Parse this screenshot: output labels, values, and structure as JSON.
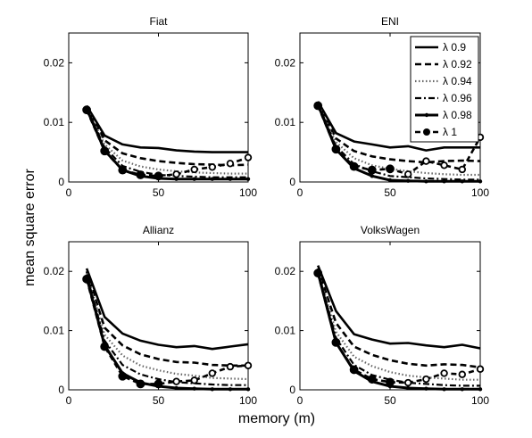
{
  "figure": {
    "xlabel": "memory (m)",
    "ylabel": "mean square error"
  },
  "legend": {
    "placement": "top-right of ENI panel",
    "entries": [
      "λ 0.9",
      "λ 0.92",
      "λ 0.94",
      "λ 0.96",
      "λ 0.98",
      "λ 1"
    ]
  },
  "chart_data": [
    {
      "type": "line",
      "title": "Fiat",
      "x": [
        10,
        20,
        30,
        40,
        50,
        60,
        70,
        80,
        90,
        100
      ],
      "xlim": [
        0,
        100
      ],
      "ylim": [
        0,
        0.025
      ],
      "xticks": [
        "0",
        "50",
        "100"
      ],
      "yticks": [
        "0",
        "0.01",
        "0.02"
      ],
      "series": [
        {
          "name": "λ 0.9",
          "style": "solid",
          "values": [
            0.0128,
            0.0078,
            0.0063,
            0.0058,
            0.0057,
            0.0053,
            0.0051,
            0.005,
            0.005,
            0.005
          ]
        },
        {
          "name": "λ 0.92",
          "style": "dashed",
          "values": [
            0.0127,
            0.007,
            0.0048,
            0.004,
            0.0035,
            0.0032,
            0.003,
            0.0029,
            0.0028,
            0.0029
          ]
        },
        {
          "name": "λ 0.94",
          "style": "dotted",
          "values": [
            0.0125,
            0.0063,
            0.0036,
            0.0026,
            0.0021,
            0.0018,
            0.0016,
            0.0015,
            0.0014,
            0.0014
          ]
        },
        {
          "name": "λ 0.96",
          "style": "dashdot",
          "values": [
            0.0124,
            0.0058,
            0.0027,
            0.0017,
            0.0012,
            0.001,
            0.0009,
            0.0008,
            0.0008,
            0.0008
          ]
        },
        {
          "name": "λ 0.98",
          "style": "solid-dot",
          "values": [
            0.0123,
            0.0053,
            0.002,
            0.001,
            0.0006,
            0.0005,
            0.0005,
            0.0005,
            0.0005,
            0.0005
          ]
        },
        {
          "name": "λ 1",
          "style": "dash-circle",
          "values": [
            0.0121,
            0.0052,
            0.002,
            0.0012,
            0.001,
            0.0013,
            0.0021,
            0.0025,
            0.0031,
            0.0041
          ]
        }
      ]
    },
    {
      "type": "line",
      "title": "ENI",
      "x": [
        10,
        20,
        30,
        40,
        50,
        60,
        70,
        80,
        90,
        100
      ],
      "xlim": [
        0,
        100
      ],
      "ylim": [
        0,
        0.025
      ],
      "xticks": [
        "0",
        "50",
        "100"
      ],
      "yticks": [
        "0",
        "0.01",
        "0.02"
      ],
      "series": [
        {
          "name": "λ 0.9",
          "style": "solid",
          "values": [
            0.0135,
            0.0082,
            0.0068,
            0.0063,
            0.0058,
            0.006,
            0.0053,
            0.0058,
            0.0058,
            0.0058
          ]
        },
        {
          "name": "λ 0.92",
          "style": "dashed",
          "values": [
            0.0133,
            0.0073,
            0.0052,
            0.0043,
            0.0038,
            0.0035,
            0.0033,
            0.0035,
            0.0036,
            0.0035
          ]
        },
        {
          "name": "λ 0.94",
          "style": "dotted",
          "values": [
            0.0132,
            0.0067,
            0.004,
            0.0028,
            0.0022,
            0.0018,
            0.0015,
            0.0013,
            0.0012,
            0.0012
          ]
        },
        {
          "name": "λ 0.96",
          "style": "dashdot",
          "values": [
            0.0131,
            0.006,
            0.003,
            0.0018,
            0.001,
            0.0008,
            0.0006,
            0.0005,
            0.0004,
            0.0004
          ]
        },
        {
          "name": "λ 0.98",
          "style": "solid-dot",
          "values": [
            0.013,
            0.0055,
            0.0023,
            0.001,
            0.0003,
            0.0002,
            0.0001,
            0.0001,
            0.0001,
            0.0001
          ]
        },
        {
          "name": "λ 1",
          "style": "dash-circle",
          "values": [
            0.0128,
            0.0055,
            0.0026,
            0.002,
            0.0022,
            0.0013,
            0.0035,
            0.0028,
            0.0021,
            0.0075
          ]
        }
      ]
    },
    {
      "type": "line",
      "title": "Allianz",
      "x": [
        10,
        20,
        30,
        40,
        50,
        60,
        70,
        80,
        90,
        100
      ],
      "xlim": [
        0,
        100
      ],
      "ylim": [
        0,
        0.025
      ],
      "xticks": [
        "0",
        "50",
        "100"
      ],
      "yticks": [
        "0",
        "0.01",
        "0.02"
      ],
      "series": [
        {
          "name": "λ 0.9",
          "style": "solid",
          "values": [
            0.0205,
            0.0123,
            0.0095,
            0.0083,
            0.0076,
            0.0072,
            0.0074,
            0.0069,
            0.0073,
            0.0077
          ]
        },
        {
          "name": "λ 0.92",
          "style": "dashed",
          "values": [
            0.02,
            0.0105,
            0.0075,
            0.006,
            0.0052,
            0.0047,
            0.0046,
            0.0042,
            0.0041,
            0.0041
          ]
        },
        {
          "name": "λ 0.94",
          "style": "dotted",
          "values": [
            0.0197,
            0.0093,
            0.0058,
            0.0041,
            0.0033,
            0.0027,
            0.0024,
            0.002,
            0.0019,
            0.0018
          ]
        },
        {
          "name": "λ 0.96",
          "style": "dashdot",
          "values": [
            0.0194,
            0.0083,
            0.0042,
            0.0026,
            0.0018,
            0.0013,
            0.0011,
            0.0009,
            0.0008,
            0.0008
          ]
        },
        {
          "name": "λ 0.98",
          "style": "solid-dot",
          "values": [
            0.019,
            0.0075,
            0.0028,
            0.0012,
            0.0006,
            0.0003,
            0.0002,
            0.0001,
            0.0001,
            0.0001
          ]
        },
        {
          "name": "λ 1",
          "style": "dash-circle",
          "values": [
            0.0187,
            0.0073,
            0.0023,
            0.001,
            0.001,
            0.0014,
            0.0016,
            0.0028,
            0.0039,
            0.0041
          ]
        }
      ]
    },
    {
      "type": "line",
      "title": "VolksWagen",
      "x": [
        10,
        20,
        30,
        40,
        50,
        60,
        70,
        80,
        90,
        100
      ],
      "xlim": [
        0,
        100
      ],
      "ylim": [
        0,
        0.025
      ],
      "xticks": [
        "0",
        "50",
        "100"
      ],
      "yticks": [
        "0",
        "0.01",
        "0.02"
      ],
      "series": [
        {
          "name": "λ 0.9",
          "style": "solid",
          "values": [
            0.021,
            0.0133,
            0.0094,
            0.0085,
            0.0078,
            0.0079,
            0.0075,
            0.0072,
            0.0076,
            0.007
          ]
        },
        {
          "name": "λ 0.92",
          "style": "dashed",
          "values": [
            0.0205,
            0.0113,
            0.0073,
            0.0059,
            0.005,
            0.0044,
            0.0041,
            0.0043,
            0.0042,
            0.0038
          ]
        },
        {
          "name": "λ 0.94",
          "style": "dotted",
          "values": [
            0.0202,
            0.0098,
            0.0056,
            0.004,
            0.003,
            0.0024,
            0.0021,
            0.0019,
            0.0017,
            0.0017
          ]
        },
        {
          "name": "λ 0.96",
          "style": "dashdot",
          "values": [
            0.02,
            0.0088,
            0.0042,
            0.0025,
            0.0017,
            0.0012,
            0.001,
            0.0008,
            0.0007,
            0.0007
          ]
        },
        {
          "name": "λ 0.98",
          "style": "solid-dot",
          "values": [
            0.0198,
            0.008,
            0.0032,
            0.0014,
            0.0006,
            0.0003,
            0.0002,
            0.0001,
            0.0001,
            0.0001
          ]
        },
        {
          "name": "λ 1",
          "style": "dash-circle",
          "values": [
            0.0197,
            0.008,
            0.0034,
            0.0018,
            0.0013,
            0.0012,
            0.0018,
            0.0028,
            0.0026,
            0.0035
          ]
        }
      ]
    }
  ]
}
